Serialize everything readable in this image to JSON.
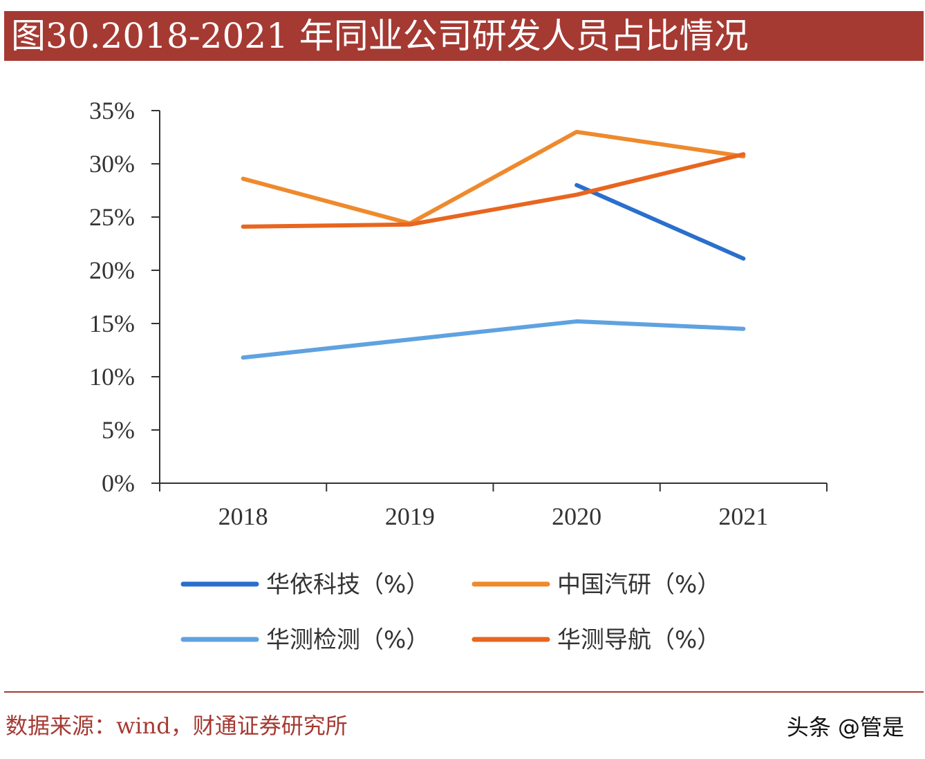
{
  "title": "图30.2018-2021 年同业公司研发人员占比情况",
  "source": "数据来源：wind，财通证券研究所",
  "watermark": "头条 @管是",
  "chart_data": {
    "type": "line",
    "title": "图30.2018-2021 年同业公司研发人员占比情况",
    "x": [
      "2018",
      "2019",
      "2020",
      "2021"
    ],
    "y_ticks": [
      "0%",
      "5%",
      "10%",
      "15%",
      "20%",
      "25%",
      "30%",
      "35%"
    ],
    "ylim": [
      0,
      35
    ],
    "grid": false,
    "legend_position": "bottom",
    "series": [
      {
        "name": "华依科技（%）",
        "color": "#2a6fcc",
        "values": [
          null,
          null,
          28.0,
          21.1
        ]
      },
      {
        "name": "中国汽研（%）",
        "color": "#ee8a2d",
        "values": [
          28.6,
          24.4,
          33.0,
          30.7
        ]
      },
      {
        "name": "华测检测（%）",
        "color": "#5fa2e0",
        "values": [
          11.8,
          13.5,
          15.2,
          14.5
        ]
      },
      {
        "name": "华测导航（%）",
        "color": "#e8661f",
        "values": [
          24.1,
          24.3,
          27.1,
          30.9
        ]
      }
    ]
  }
}
